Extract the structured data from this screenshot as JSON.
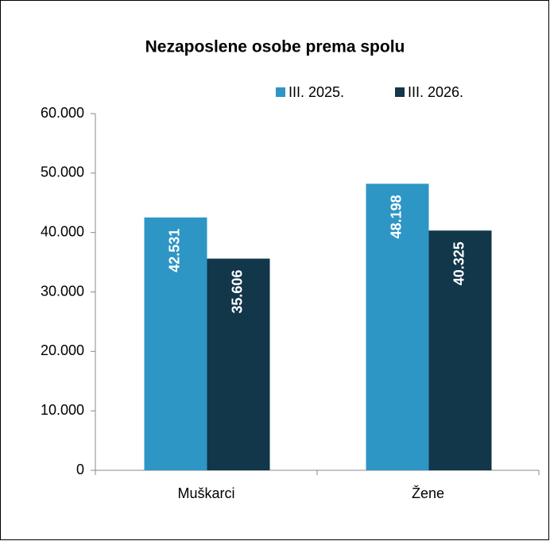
{
  "chart_data": {
    "type": "bar",
    "title": "Nezaposlene osobe prema spolu",
    "categories": [
      "Muškarci",
      "Žene"
    ],
    "series": [
      {
        "name": "III. 2025.",
        "color": "#2e96c4",
        "values": [
          42531,
          48198
        ],
        "value_labels": [
          "42.531",
          "48.198"
        ]
      },
      {
        "name": "III. 2026.",
        "color": "#12364a",
        "values": [
          35606,
          40325
        ],
        "value_labels": [
          "35.606",
          "40.325"
        ]
      }
    ],
    "ylim": [
      0,
      60000
    ],
    "yticks": [
      0,
      {
        "value": 10000,
        "label": "10.000"
      },
      {
        "value": 20000,
        "label": "20.000"
      },
      {
        "value": 30000,
        "label": "30.000"
      },
      {
        "value": 40000,
        "label": "40.000"
      },
      {
        "value": 50000,
        "label": "50.000"
      },
      {
        "value": 60000,
        "label": "60.000"
      }
    ],
    "grid": false
  }
}
